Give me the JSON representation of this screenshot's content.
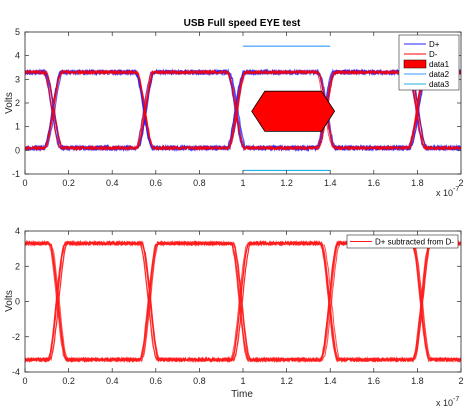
{
  "colors": {
    "d_plus": "#2020ff",
    "d_minus": "#ff0000",
    "data1": "#ff0000",
    "data2": "#3399ff",
    "data3": "#20b0e0",
    "difference": "#ff1a1a",
    "axis": "#262626"
  },
  "chart_data": [
    {
      "type": "line",
      "title": "USB Full speed EYE test",
      "xlabel": "",
      "ylabel": "Volts",
      "x_exponent_label": "x 10",
      "x_exponent_power": "-7",
      "xlim": [
        0,
        2e-07
      ],
      "ylim": [
        -1,
        5
      ],
      "xticks": [
        0,
        2e-08,
        4e-08,
        6e-08,
        8e-08,
        1e-07,
        1.2e-07,
        1.4e-07,
        1.6e-07,
        1.8e-07,
        2e-07
      ],
      "xtick_labels": [
        "0",
        "0.2",
        "0.4",
        "0.6",
        "0.8",
        "1",
        "1.2",
        "1.4",
        "1.6",
        "1.8",
        "2"
      ],
      "yticks": [
        -1,
        0,
        1,
        2,
        3,
        4,
        5
      ],
      "ytick_labels": [
        "-1",
        "0",
        "1",
        "2",
        "3",
        "4",
        "5"
      ],
      "legend": {
        "location": "top-right",
        "entries": [
          "D+",
          "D-",
          "data1",
          "data2",
          "data3"
        ]
      },
      "eye": {
        "high_level": 3.3,
        "low_level": 0.1,
        "crossings": [
          1.3e-08,
          5.5e-08,
          9.7e-08,
          1.38e-07,
          1.8e-07
        ],
        "transition_width": 4e-09
      },
      "series": [
        {
          "name": "D+",
          "kind": "eye-trace",
          "color_key": "d_plus"
        },
        {
          "name": "D-",
          "kind": "eye-trace",
          "color_key": "d_minus"
        },
        {
          "name": "data1",
          "kind": "polygon",
          "color_key": "data1",
          "x": [
            1.04e-07,
            1.1e-07,
            1.36e-07,
            1.42e-07,
            1.36e-07,
            1.1e-07
          ],
          "y": [
            1.65,
            2.5,
            2.5,
            1.65,
            0.8,
            0.8
          ]
        },
        {
          "name": "data2",
          "kind": "line",
          "color_key": "data2",
          "x": [
            1e-07,
            1.4e-07
          ],
          "y": [
            4.4,
            4.4
          ]
        },
        {
          "name": "data3",
          "kind": "line",
          "color_key": "data3",
          "x": [
            1e-07,
            1.4e-07
          ],
          "y": [
            -0.85,
            -0.85
          ]
        }
      ]
    },
    {
      "type": "line",
      "title": "",
      "xlabel": "Time",
      "ylabel": "Volts",
      "x_exponent_label": "x 10",
      "x_exponent_power": "-7",
      "xlim": [
        0,
        2e-07
      ],
      "ylim": [
        -4,
        4
      ],
      "xticks": [
        0,
        2e-08,
        4e-08,
        6e-08,
        8e-08,
        1e-07,
        1.2e-07,
        1.4e-07,
        1.6e-07,
        1.8e-07,
        2e-07
      ],
      "xtick_labels": [
        "0",
        "0.2",
        "0.4",
        "0.6",
        "0.8",
        "1",
        "1.2",
        "1.4",
        "1.6",
        "1.8",
        "2"
      ],
      "yticks": [
        -4,
        -2,
        0,
        2,
        4
      ],
      "ytick_labels": [
        "-4",
        "-2",
        "0",
        "2",
        "4"
      ],
      "legend": {
        "location": "top-right",
        "entries": [
          "D+ subtracted from D-"
        ]
      },
      "eye": {
        "high_level": 3.3,
        "low_level": -3.3,
        "crossings": [
          1.5e-08,
          5.7e-08,
          9.9e-08,
          1.4e-07,
          1.82e-07
        ],
        "transition_width": 4e-09
      },
      "series": [
        {
          "name": "D+ subtracted from D-",
          "kind": "eye-trace",
          "color_key": "difference"
        }
      ]
    }
  ]
}
